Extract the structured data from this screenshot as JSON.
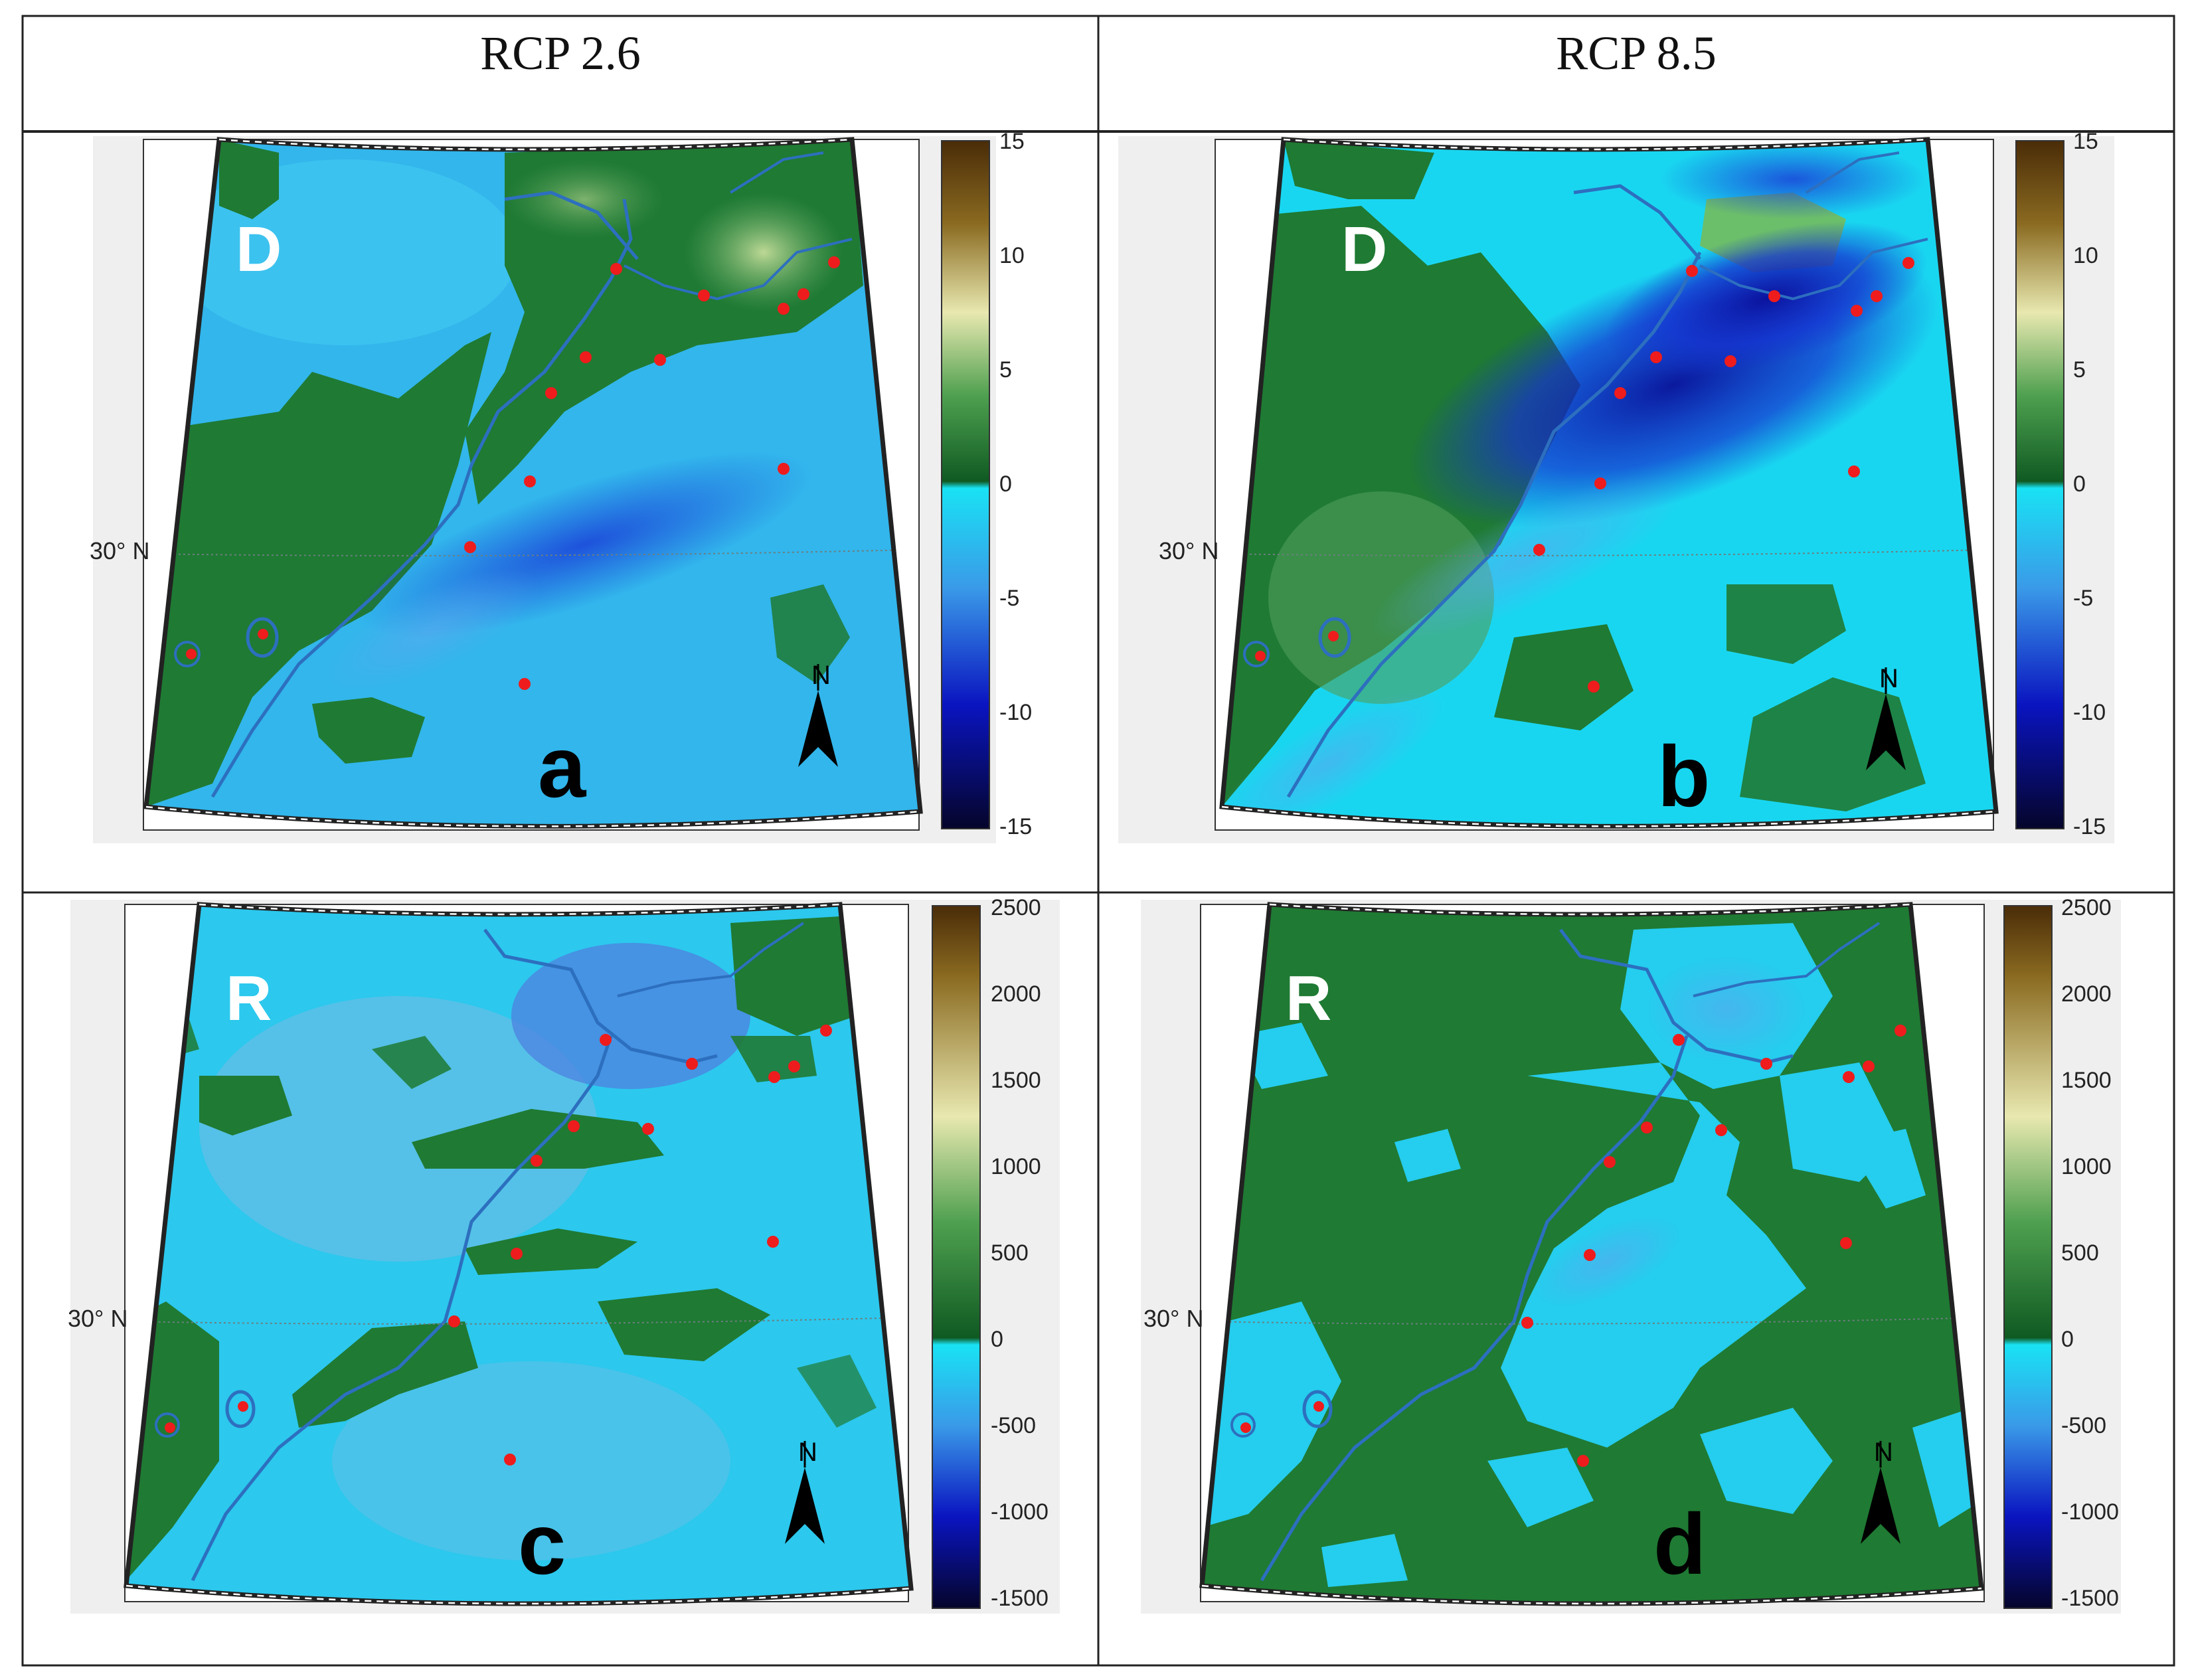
{
  "headers": {
    "left": "RCP 2.6",
    "right": "RCP 8.5"
  },
  "colors": {
    "ocean_light": "#17d8f0",
    "land_green": "#1f7a33",
    "land_green_dark": "#15652a",
    "deep_blue": "#0a1fb4",
    "station": "#ee1c1c",
    "river": "#2d6fbf"
  },
  "latitude_label": "30° N",
  "north_label": "N",
  "panels": [
    {
      "id": "a",
      "tag": "D",
      "letter": "a",
      "scenario": "RCP 2.6",
      "colorbar": {
        "ticks": [
          "15",
          "10",
          "5",
          "0",
          "-5",
          "-10",
          "-15"
        ]
      }
    },
    {
      "id": "b",
      "tag": "D",
      "letter": "b",
      "scenario": "RCP 8.5",
      "colorbar": {
        "ticks": [
          "15",
          "10",
          "5",
          "0",
          "-5",
          "-10",
          "-15"
        ]
      }
    },
    {
      "id": "c",
      "tag": "R",
      "letter": "c",
      "scenario": "RCP 2.6",
      "colorbar": {
        "ticks": [
          "2500",
          "2000",
          "1500",
          "1000",
          "500",
          "0",
          "-500",
          "-1000",
          "-1500"
        ]
      }
    },
    {
      "id": "d",
      "tag": "R",
      "letter": "d",
      "scenario": "RCP 8.5",
      "colorbar": {
        "ticks": [
          "2500",
          "2000",
          "1500",
          "1000",
          "500",
          "0",
          "-500",
          "-1000",
          "-1500"
        ]
      }
    }
  ]
}
